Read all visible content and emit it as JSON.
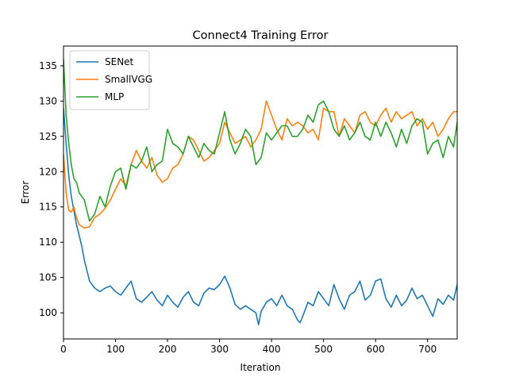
{
  "chart_data": {
    "type": "line",
    "title": "Connect4 Training Error",
    "xlabel": "Iteration",
    "ylabel": "Error",
    "xlim": [
      0,
      757
    ],
    "ylim": [
      96.3,
      137.8
    ],
    "xticks": [
      0,
      100,
      200,
      300,
      400,
      500,
      600,
      700
    ],
    "yticks": [
      100,
      105,
      110,
      115,
      120,
      125,
      130,
      135
    ],
    "grid": false,
    "legend_position": "upper-left",
    "series": [
      {
        "name": "SENet",
        "color": "#1f77b4",
        "x": [
          0,
          5,
          10,
          15,
          20,
          25,
          30,
          35,
          40,
          45,
          50,
          55,
          60,
          70,
          80,
          90,
          100,
          110,
          120,
          130,
          140,
          150,
          160,
          170,
          180,
          190,
          200,
          210,
          220,
          230,
          240,
          250,
          260,
          270,
          280,
          290,
          300,
          310,
          320,
          330,
          340,
          350,
          360,
          370,
          375,
          380,
          390,
          400,
          410,
          420,
          430,
          440,
          450,
          455,
          460,
          470,
          480,
          490,
          500,
          510,
          520,
          530,
          540,
          550,
          560,
          570,
          580,
          590,
          600,
          610,
          620,
          630,
          640,
          650,
          660,
          670,
          680,
          690,
          700,
          710,
          720,
          730,
          740,
          750,
          757
        ],
        "values": [
          129.0,
          124.0,
          119.5,
          116.5,
          114.5,
          112.5,
          111.0,
          109.5,
          107.5,
          106.0,
          104.5,
          104.0,
          103.5,
          103.0,
          103.5,
          103.8,
          103.0,
          102.5,
          103.5,
          104.5,
          102.0,
          101.5,
          102.2,
          103.0,
          101.8,
          101.0,
          102.5,
          101.5,
          100.8,
          102.2,
          103.0,
          101.5,
          101.0,
          102.8,
          103.5,
          103.3,
          104.0,
          105.2,
          103.5,
          101.2,
          100.5,
          101.0,
          100.5,
          100.0,
          98.3,
          100.2,
          101.5,
          102.0,
          101.0,
          102.5,
          101.0,
          100.5,
          99.0,
          98.6,
          99.5,
          101.5,
          101.0,
          103.0,
          102.0,
          101.0,
          104.0,
          102.0,
          100.5,
          102.5,
          103.0,
          104.5,
          101.8,
          102.5,
          104.5,
          104.8,
          102.0,
          100.8,
          102.5,
          101.0,
          101.8,
          103.5,
          102.0,
          102.5,
          101.0,
          99.5,
          102.0,
          101.2,
          102.5,
          101.8,
          104.0
        ]
      },
      {
        "name": "SmallVGG",
        "color": "#ff7f0e",
        "x": [
          0,
          5,
          10,
          15,
          20,
          25,
          30,
          40,
          50,
          60,
          70,
          80,
          90,
          100,
          110,
          120,
          130,
          140,
          150,
          160,
          170,
          180,
          190,
          200,
          210,
          220,
          230,
          240,
          250,
          260,
          270,
          280,
          290,
          300,
          310,
          320,
          330,
          340,
          350,
          360,
          370,
          380,
          390,
          400,
          410,
          420,
          430,
          440,
          450,
          460,
          470,
          480,
          490,
          500,
          510,
          520,
          530,
          540,
          550,
          560,
          570,
          580,
          590,
          600,
          610,
          620,
          630,
          640,
          650,
          660,
          670,
          680,
          690,
          700,
          710,
          720,
          730,
          740,
          750,
          757
        ],
        "values": [
          122.5,
          117.0,
          114.5,
          114.3,
          115.0,
          113.5,
          112.5,
          112.0,
          112.2,
          113.5,
          114.0,
          114.8,
          116.0,
          117.5,
          119.0,
          118.0,
          121.0,
          123.0,
          121.5,
          120.5,
          122.0,
          119.5,
          118.5,
          119.0,
          120.5,
          121.0,
          122.5,
          125.0,
          124.5,
          123.0,
          121.5,
          122.0,
          123.0,
          124.0,
          127.0,
          125.5,
          124.0,
          124.5,
          125.0,
          123.5,
          124.5,
          126.0,
          130.0,
          128.0,
          126.0,
          124.5,
          127.5,
          126.5,
          127.0,
          126.5,
          125.5,
          126.0,
          124.5,
          129.0,
          128.5,
          128.5,
          125.0,
          127.5,
          126.5,
          125.5,
          128.0,
          128.5,
          127.0,
          126.5,
          128.0,
          129.0,
          127.0,
          128.5,
          127.5,
          128.0,
          128.5,
          126.5,
          127.5,
          126.0,
          127.0,
          125.0,
          126.0,
          127.5,
          128.5,
          128.5
        ]
      },
      {
        "name": "MLP",
        "color": "#2ca02c",
        "x": [
          0,
          5,
          10,
          15,
          20,
          25,
          30,
          40,
          50,
          60,
          70,
          80,
          90,
          100,
          110,
          120,
          130,
          140,
          150,
          160,
          170,
          180,
          190,
          200,
          210,
          220,
          230,
          240,
          250,
          260,
          270,
          280,
          290,
          300,
          310,
          320,
          330,
          340,
          350,
          360,
          370,
          380,
          390,
          400,
          410,
          420,
          430,
          440,
          450,
          460,
          470,
          480,
          490,
          500,
          510,
          520,
          530,
          540,
          550,
          560,
          570,
          580,
          590,
          600,
          610,
          620,
          630,
          640,
          650,
          660,
          670,
          680,
          690,
          700,
          710,
          720,
          730,
          740,
          750,
          757
        ],
        "values": [
          136.0,
          128.0,
          124.0,
          121.0,
          119.0,
          118.5,
          117.0,
          116.0,
          113.0,
          114.0,
          116.5,
          115.0,
          118.0,
          120.0,
          120.5,
          117.5,
          121.0,
          120.5,
          121.5,
          123.5,
          120.0,
          121.0,
          121.5,
          126.0,
          124.0,
          123.5,
          122.5,
          125.0,
          123.5,
          122.0,
          124.0,
          123.0,
          122.5,
          125.5,
          128.5,
          124.5,
          122.5,
          124.0,
          126.0,
          125.0,
          121.0,
          122.0,
          125.5,
          124.5,
          125.5,
          126.5,
          126.5,
          125.0,
          125.0,
          126.0,
          128.0,
          127.0,
          129.5,
          130.0,
          128.5,
          126.0,
          125.0,
          126.5,
          124.5,
          125.5,
          127.0,
          125.0,
          124.5,
          127.0,
          125.0,
          127.0,
          125.5,
          123.5,
          126.0,
          124.0,
          126.5,
          127.5,
          127.0,
          122.5,
          124.0,
          124.5,
          122.0,
          125.0,
          123.5,
          127.0
        ]
      }
    ]
  }
}
